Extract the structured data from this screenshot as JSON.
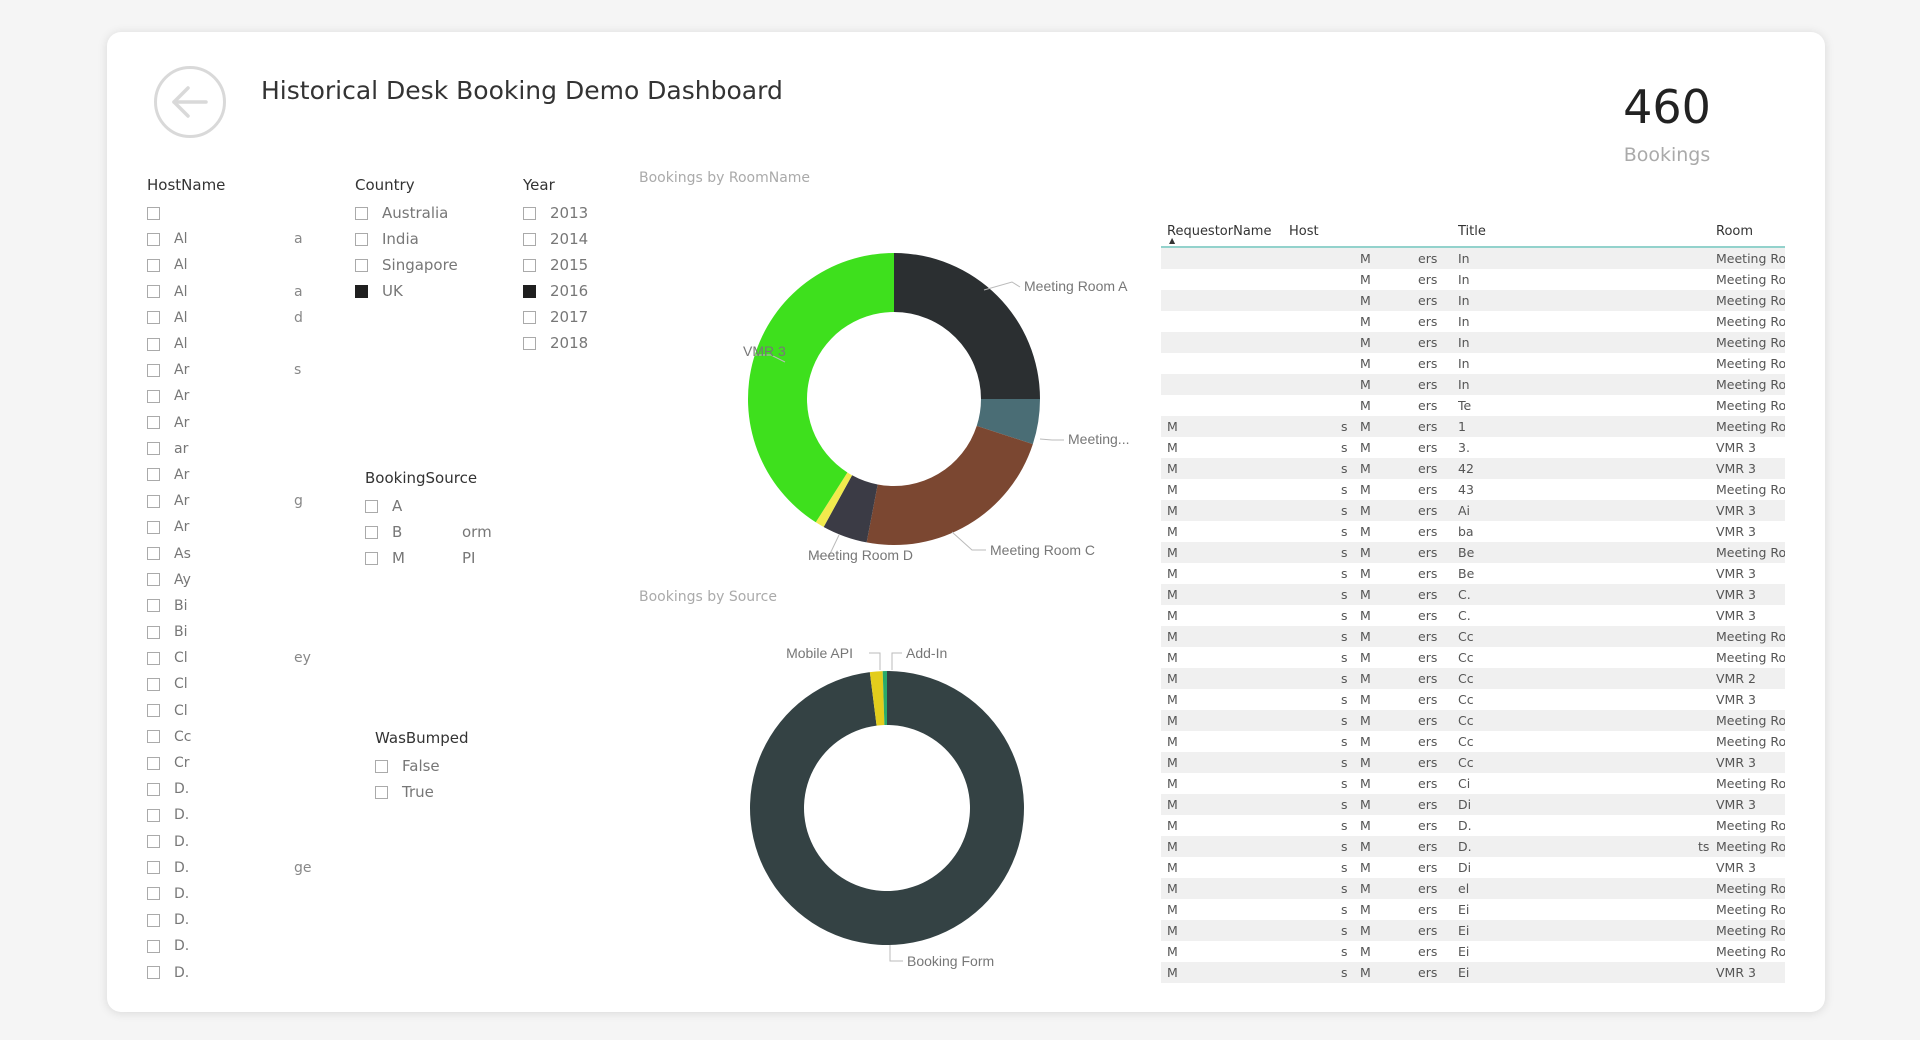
{
  "header": {
    "title": "Historical Desk Booking Demo Dashboard"
  },
  "kpi": {
    "value": "460",
    "label": "Bookings"
  },
  "slicers": {
    "hostname": {
      "title": "HostName",
      "items": [
        {
          "text": "",
          "tail": ""
        },
        {
          "text": "Al",
          "tail": "a"
        },
        {
          "text": "Al",
          "tail": ""
        },
        {
          "text": "Al",
          "tail": "a"
        },
        {
          "text": "Al",
          "tail": "d"
        },
        {
          "text": "Al",
          "tail": ""
        },
        {
          "text": "Ar",
          "tail": "s"
        },
        {
          "text": "Ar",
          "tail": ""
        },
        {
          "text": "Ar",
          "tail": ""
        },
        {
          "text": "ar",
          "tail": ""
        },
        {
          "text": "Ar",
          "tail": ""
        },
        {
          "text": "Ar",
          "tail": "g"
        },
        {
          "text": "Ar",
          "tail": ""
        },
        {
          "text": "As",
          "tail": ""
        },
        {
          "text": "Ay",
          "tail": ""
        },
        {
          "text": "Bi",
          "tail": ""
        },
        {
          "text": "Bi",
          "tail": ""
        },
        {
          "text": "Cl",
          "tail": "ey"
        },
        {
          "text": "Cl",
          "tail": ""
        },
        {
          "text": "Cl",
          "tail": ""
        },
        {
          "text": "Cc",
          "tail": ""
        },
        {
          "text": "Cr",
          "tail": ""
        },
        {
          "text": "D.",
          "tail": ""
        },
        {
          "text": "D.",
          "tail": ""
        },
        {
          "text": "D.",
          "tail": ""
        },
        {
          "text": "D.",
          "tail": "ge"
        },
        {
          "text": "D.",
          "tail": ""
        },
        {
          "text": "D.",
          "tail": ""
        },
        {
          "text": "D.",
          "tail": ""
        },
        {
          "text": "D.",
          "tail": ""
        }
      ]
    },
    "country": {
      "title": "Country",
      "items": [
        {
          "label": "Australia",
          "checked": false
        },
        {
          "label": "India",
          "checked": false
        },
        {
          "label": "Singapore",
          "checked": false
        },
        {
          "label": "UK",
          "checked": true
        }
      ]
    },
    "year": {
      "title": "Year",
      "items": [
        {
          "label": "2013",
          "checked": false
        },
        {
          "label": "2014",
          "checked": false
        },
        {
          "label": "2015",
          "checked": false
        },
        {
          "label": "2016",
          "checked": true
        },
        {
          "label": "2017",
          "checked": false
        },
        {
          "label": "2018",
          "checked": false
        }
      ]
    },
    "booking_source": {
      "title": "BookingSource",
      "items": [
        {
          "label": "A",
          "tail": ""
        },
        {
          "label": "B",
          "tail": "orm"
        },
        {
          "label": "M",
          "tail": "PI"
        }
      ]
    },
    "was_bumped": {
      "title": "WasBumped",
      "items": [
        {
          "label": "False"
        },
        {
          "label": "True"
        }
      ]
    }
  },
  "chart_data": [
    {
      "type": "pie",
      "title": "Bookings by RoomName",
      "donut": true,
      "slices": [
        {
          "label": "Meeting Room A",
          "value": 25,
          "color": "#2b2f31"
        },
        {
          "label": "Meeting...",
          "value": 5,
          "color": "#4a6d75"
        },
        {
          "label": "Meeting Room C",
          "value": 23,
          "color": "#7b4731"
        },
        {
          "label": "Meeting Room D",
          "value": 5,
          "color": "#3b3b45"
        },
        {
          "label": "",
          "value": 1,
          "color": "#f1ea4d"
        },
        {
          "label": "VMR 3",
          "value": 41,
          "color": "#3ee01d"
        }
      ]
    },
    {
      "type": "pie",
      "title": "Bookings by Source",
      "donut": true,
      "slices": [
        {
          "label": "Booking Form",
          "value": 98,
          "color": "#344244"
        },
        {
          "label": "Mobile API",
          "value": 1.5,
          "color": "#e3cd1c"
        },
        {
          "label": "Add-In",
          "value": 0.5,
          "color": "#2aaa6a"
        }
      ]
    }
  ],
  "table": {
    "columns": [
      "RequestorName",
      "Host",
      "Title",
      "Room"
    ],
    "rows": [
      {
        "a": "",
        "b": "",
        "c": "M",
        "d": "ers",
        "e": "In",
        "f": "",
        "room": "Meeting Room"
      },
      {
        "a": "",
        "b": "",
        "c": "M",
        "d": "ers",
        "e": "In",
        "f": "",
        "room": "Meeting Room"
      },
      {
        "a": "",
        "b": "",
        "c": "M",
        "d": "ers",
        "e": "In",
        "f": "",
        "room": "Meeting Room"
      },
      {
        "a": "",
        "b": "",
        "c": "M",
        "d": "ers",
        "e": "In",
        "f": "",
        "room": "Meeting Room"
      },
      {
        "a": "",
        "b": "",
        "c": "M",
        "d": "ers",
        "e": "In",
        "f": "",
        "room": "Meeting Room"
      },
      {
        "a": "",
        "b": "",
        "c": "M",
        "d": "ers",
        "e": "In",
        "f": "",
        "room": "Meeting Room"
      },
      {
        "a": "",
        "b": "",
        "c": "M",
        "d": "ers",
        "e": "In",
        "f": "",
        "room": "Meeting Room"
      },
      {
        "a": "",
        "b": "",
        "c": "M",
        "d": "ers",
        "e": "Te",
        "f": "",
        "room": "Meeting Room"
      },
      {
        "a": "M",
        "b": "s",
        "c": "M",
        "d": "ers",
        "e": "1",
        "f": "",
        "room": "Meeting Room"
      },
      {
        "a": "M",
        "b": "s",
        "c": "M",
        "d": "ers",
        "e": "3.",
        "f": "",
        "room": "VMR 3"
      },
      {
        "a": "M",
        "b": "s",
        "c": "M",
        "d": "ers",
        "e": "42",
        "f": "",
        "room": "VMR 3"
      },
      {
        "a": "M",
        "b": "s",
        "c": "M",
        "d": "ers",
        "e": "43",
        "f": "",
        "room": "Meeting Room"
      },
      {
        "a": "M",
        "b": "s",
        "c": "M",
        "d": "ers",
        "e": "Ai",
        "f": "",
        "room": "VMR 3"
      },
      {
        "a": "M",
        "b": "s",
        "c": "M",
        "d": "ers",
        "e": "ba",
        "f": "",
        "room": "VMR 3"
      },
      {
        "a": "M",
        "b": "s",
        "c": "M",
        "d": "ers",
        "e": "Be",
        "f": "",
        "room": "Meeting Room"
      },
      {
        "a": "M",
        "b": "s",
        "c": "M",
        "d": "ers",
        "e": "Be",
        "f": "",
        "room": "VMR 3"
      },
      {
        "a": "M",
        "b": "s",
        "c": "M",
        "d": "ers",
        "e": "C.",
        "f": "",
        "room": "VMR 3"
      },
      {
        "a": "M",
        "b": "s",
        "c": "M",
        "d": "ers",
        "e": "C.",
        "f": "",
        "room": "VMR 3"
      },
      {
        "a": "M",
        "b": "s",
        "c": "M",
        "d": "ers",
        "e": "Cc",
        "f": "",
        "room": "Meeting Room"
      },
      {
        "a": "M",
        "b": "s",
        "c": "M",
        "d": "ers",
        "e": "Cc",
        "f": "",
        "room": "Meeting Room"
      },
      {
        "a": "M",
        "b": "s",
        "c": "M",
        "d": "ers",
        "e": "Cc",
        "f": "",
        "room": "VMR 2"
      },
      {
        "a": "M",
        "b": "s",
        "c": "M",
        "d": "ers",
        "e": "Cc",
        "f": "",
        "room": "VMR 3"
      },
      {
        "a": "M",
        "b": "s",
        "c": "M",
        "d": "ers",
        "e": "Cc",
        "f": "",
        "room": "Meeting Room"
      },
      {
        "a": "M",
        "b": "s",
        "c": "M",
        "d": "ers",
        "e": "Cc",
        "f": "",
        "room": "Meeting Room"
      },
      {
        "a": "M",
        "b": "s",
        "c": "M",
        "d": "ers",
        "e": "Cc",
        "f": "",
        "room": "VMR 3"
      },
      {
        "a": "M",
        "b": "s",
        "c": "M",
        "d": "ers",
        "e": "Ci",
        "f": "",
        "room": "Meeting Room"
      },
      {
        "a": "M",
        "b": "s",
        "c": "M",
        "d": "ers",
        "e": "Di",
        "f": "",
        "room": "VMR 3"
      },
      {
        "a": "M",
        "b": "s",
        "c": "M",
        "d": "ers",
        "e": "D.",
        "f": "",
        "room": "Meeting Room"
      },
      {
        "a": "M",
        "b": "s",
        "c": "M",
        "d": "ers",
        "e": "D.",
        "f": "ts",
        "room": "Meeting Room"
      },
      {
        "a": "M",
        "b": "s",
        "c": "M",
        "d": "ers",
        "e": "Di",
        "f": "",
        "room": "VMR 3"
      },
      {
        "a": "M",
        "b": "s",
        "c": "M",
        "d": "ers",
        "e": "el",
        "f": "",
        "room": "Meeting Room"
      },
      {
        "a": "M",
        "b": "s",
        "c": "M",
        "d": "ers",
        "e": "Ei",
        "f": "",
        "room": "Meeting Room"
      },
      {
        "a": "M",
        "b": "s",
        "c": "M",
        "d": "ers",
        "e": "Ei",
        "f": "",
        "room": "Meeting Room"
      },
      {
        "a": "M",
        "b": "s",
        "c": "M",
        "d": "ers",
        "e": "Ei",
        "f": "",
        "room": "Meeting Room"
      },
      {
        "a": "M",
        "b": "s",
        "c": "M",
        "d": "ers",
        "e": "Ei",
        "f": "",
        "room": "VMR 3"
      }
    ]
  }
}
